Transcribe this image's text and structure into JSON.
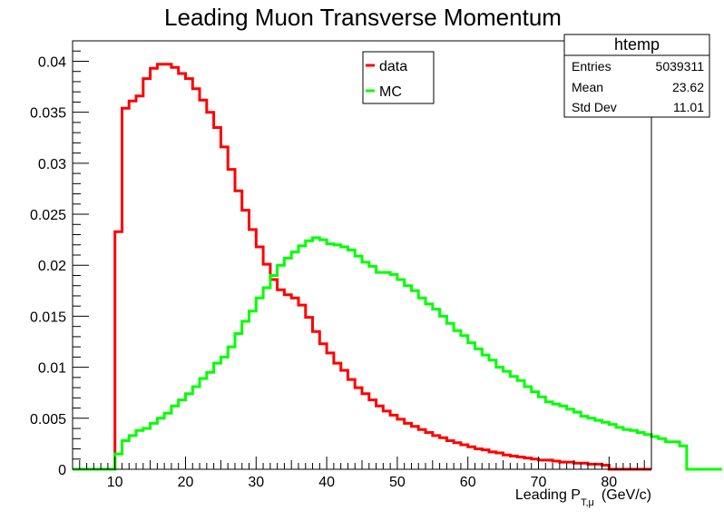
{
  "chart_data": {
    "type": "line",
    "title": "Leading Muon Transverse Momentum",
    "xlabel_main": "Leading P",
    "xlabel_sub": "T,μ",
    "xlabel_unit": "(GeV/c)",
    "ylabel": "",
    "xlim": [
      4,
      86
    ],
    "ylim": [
      0,
      0.042
    ],
    "xticks": [
      10,
      20,
      30,
      40,
      50,
      60,
      70,
      80
    ],
    "yticks": [
      "0",
      "0.005",
      "0.01",
      "0.015",
      "0.02",
      "0.025",
      "0.03",
      "0.035",
      "0.04"
    ],
    "grid": false,
    "legend_position": "top-center",
    "stats_box": {
      "title": "htemp",
      "rows": [
        {
          "label": "Entries",
          "value": "5039311"
        },
        {
          "label": "Mean",
          "value": "23.62"
        },
        {
          "label": "Std Dev",
          "value": "11.01"
        }
      ]
    },
    "bin_start": 4,
    "bin_width": 1,
    "series": [
      {
        "name": "data",
        "color": "#ff0000",
        "values": [
          0,
          0,
          0,
          0,
          0,
          0,
          0.0233,
          0.0354,
          0.0361,
          0.0366,
          0.0383,
          0.0393,
          0.0397,
          0.0397,
          0.0394,
          0.0388,
          0.0383,
          0.0373,
          0.0362,
          0.035,
          0.0335,
          0.0316,
          0.0294,
          0.0273,
          0.0254,
          0.0235,
          0.0218,
          0.0201,
          0.0186,
          0.0176,
          0.0171,
          0.0168,
          0.0161,
          0.0149,
          0.0135,
          0.0123,
          0.0114,
          0.0104,
          0.0097,
          0.0088,
          0.008,
          0.0074,
          0.0068,
          0.0062,
          0.0057,
          0.0053,
          0.0049,
          0.0045,
          0.0042,
          0.0039,
          0.0036,
          0.0033,
          0.0031,
          0.0028,
          0.0026,
          0.0024,
          0.0022,
          0.002,
          0.0019,
          0.0017,
          0.0016,
          0.0014,
          0.0013,
          0.0012,
          0.0011,
          0.001,
          0.0009,
          0.0009,
          0.0008,
          0.0007,
          0.0007,
          0.0006,
          0.0006,
          0.0005,
          0.0005,
          0.0004,
          0,
          0,
          0,
          0,
          0,
          0
        ]
      },
      {
        "name": "MC",
        "color": "#00ff00",
        "values": [
          0,
          0,
          0,
          0,
          0,
          0,
          0.0015,
          0.0028,
          0.0033,
          0.0038,
          0.004,
          0.0045,
          0.005,
          0.0055,
          0.0062,
          0.0068,
          0.0074,
          0.0081,
          0.0089,
          0.0095,
          0.0104,
          0.011,
          0.012,
          0.0133,
          0.0145,
          0.0155,
          0.0168,
          0.0178,
          0.019,
          0.02,
          0.0207,
          0.0213,
          0.0219,
          0.0224,
          0.0227,
          0.0225,
          0.0221,
          0.022,
          0.0218,
          0.0215,
          0.0209,
          0.0203,
          0.0199,
          0.0193,
          0.0193,
          0.0191,
          0.0186,
          0.018,
          0.0175,
          0.0168,
          0.0162,
          0.0157,
          0.015,
          0.0143,
          0.0136,
          0.0131,
          0.0124,
          0.0118,
          0.0112,
          0.0107,
          0.01,
          0.0096,
          0.0091,
          0.0087,
          0.0081,
          0.0076,
          0.0071,
          0.0066,
          0.0064,
          0.0062,
          0.0059,
          0.0056,
          0.0052,
          0.005,
          0.0048,
          0.0046,
          0.0044,
          0.0041,
          0.0039,
          0.0038,
          0.0036,
          0.0034,
          0.0032,
          0.003,
          0.0027,
          0.0027,
          0.0023,
          0,
          0,
          0,
          0,
          0
        ]
      }
    ]
  }
}
